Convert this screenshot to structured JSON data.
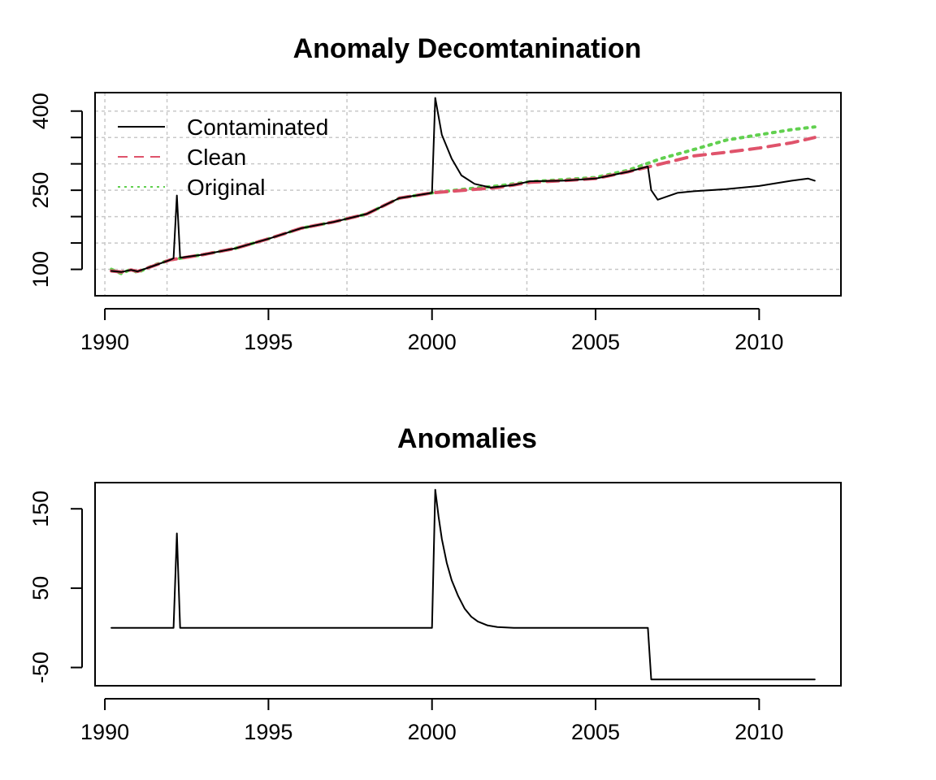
{
  "chart_data": [
    {
      "type": "line",
      "title": "Anomaly Decomtanination",
      "xlabel": "",
      "ylabel": "",
      "xlim": [
        1989.7,
        2012.5
      ],
      "ylim": [
        50,
        435
      ],
      "x_ticks": [
        1990,
        1995,
        2000,
        2005,
        2010
      ],
      "x_tick_labels": [
        "1990",
        "1995",
        "2000",
        "2005",
        "2010"
      ],
      "y_ticks": [
        100,
        250,
        400
      ],
      "y_tick_labels": [
        "100",
        "250",
        "400"
      ],
      "grid": true,
      "grid_x": [
        1990.0,
        1991.9,
        1997.4,
        2002.9,
        2008.3
      ],
      "grid_y": [
        100,
        150,
        200,
        250,
        300,
        350,
        400
      ],
      "legend_position": "top-left",
      "colors": {
        "contaminated": "#000000",
        "clean": "#DF536B",
        "original": "#61D04F"
      },
      "series": [
        {
          "name": "Contaminated",
          "style": "solid",
          "points": [
            [
              1990.2,
              97
            ],
            [
              1990.5,
              95
            ],
            [
              1990.8,
              99
            ],
            [
              1991.0,
              96
            ],
            [
              1991.5,
              107
            ],
            [
              1992.0,
              118
            ],
            [
              1992.1,
              121
            ],
            [
              1992.2,
              240
            ],
            [
              1992.3,
              122
            ],
            [
              1993.0,
              128
            ],
            [
              1994.0,
              140
            ],
            [
              1995.0,
              158
            ],
            [
              1996.0,
              178
            ],
            [
              1997.0,
              190
            ],
            [
              1998.0,
              205
            ],
            [
              1999.0,
              235
            ],
            [
              2000.0,
              245
            ],
            [
              2000.1,
              425
            ],
            [
              2000.3,
              355
            ],
            [
              2000.6,
              310
            ],
            [
              2000.9,
              278
            ],
            [
              2001.3,
              262
            ],
            [
              2001.8,
              255
            ],
            [
              2002.5,
              260
            ],
            [
              2003.0,
              267
            ],
            [
              2004.0,
              268
            ],
            [
              2005.0,
              272
            ],
            [
              2006.0,
              285
            ],
            [
              2006.6,
              295
            ],
            [
              2006.7,
              250
            ],
            [
              2006.9,
              232
            ],
            [
              2007.5,
              245
            ],
            [
              2008.0,
              248
            ],
            [
              2009.0,
              252
            ],
            [
              2010.0,
              258
            ],
            [
              2011.0,
              268
            ],
            [
              2011.5,
              272
            ],
            [
              2011.7,
              268
            ]
          ]
        },
        {
          "name": "Clean",
          "style": "dashed",
          "points": [
            [
              1990.2,
              97
            ],
            [
              1990.5,
              95
            ],
            [
              1990.8,
              99
            ],
            [
              1991.0,
              96
            ],
            [
              1991.5,
              107
            ],
            [
              1992.0,
              118
            ],
            [
              1993.0,
              128
            ],
            [
              1994.0,
              140
            ],
            [
              1995.0,
              158
            ],
            [
              1996.0,
              178
            ],
            [
              1997.0,
              190
            ],
            [
              1998.0,
              205
            ],
            [
              1999.0,
              235
            ],
            [
              2000.0,
              245
            ],
            [
              2001.0,
              250
            ],
            [
              2002.0,
              255
            ],
            [
              2003.0,
              265
            ],
            [
              2004.0,
              268
            ],
            [
              2005.0,
              272
            ],
            [
              2006.0,
              285
            ],
            [
              2007.0,
              300
            ],
            [
              2008.0,
              315
            ],
            [
              2009.0,
              322
            ],
            [
              2010.0,
              330
            ],
            [
              2011.0,
              340
            ],
            [
              2011.7,
              350
            ]
          ]
        },
        {
          "name": "Original",
          "style": "dotted",
          "points": [
            [
              1990.2,
              100
            ],
            [
              1990.5,
              92
            ],
            [
              1990.8,
              100
            ],
            [
              1991.0,
              94
            ],
            [
              1991.5,
              108
            ],
            [
              1992.0,
              118
            ],
            [
              1993.0,
              128
            ],
            [
              1994.0,
              140
            ],
            [
              1995.0,
              158
            ],
            [
              1996.0,
              178
            ],
            [
              1997.0,
              190
            ],
            [
              1998.0,
              205
            ],
            [
              1999.0,
              235
            ],
            [
              2000.0,
              245
            ],
            [
              2001.0,
              252
            ],
            [
              2002.0,
              258
            ],
            [
              2003.0,
              266
            ],
            [
              2004.0,
              270
            ],
            [
              2005.0,
              274
            ],
            [
              2006.0,
              288
            ],
            [
              2007.0,
              310
            ],
            [
              2008.0,
              327
            ],
            [
              2009.0,
              345
            ],
            [
              2010.0,
              355
            ],
            [
              2011.0,
              365
            ],
            [
              2011.7,
              370
            ]
          ]
        }
      ]
    },
    {
      "type": "line",
      "title": "Anomalies",
      "xlabel": "",
      "ylabel": "",
      "xlim": [
        1989.7,
        2012.5
      ],
      "ylim": [
        -73,
        183
      ],
      "x_ticks": [
        1990,
        1995,
        2000,
        2005,
        2010
      ],
      "x_tick_labels": [
        "1990",
        "1995",
        "2000",
        "2005",
        "2010"
      ],
      "y_ticks": [
        -50,
        50,
        150
      ],
      "y_tick_labels": [
        "-50",
        "50",
        "150"
      ],
      "grid": false,
      "series": [
        {
          "name": "",
          "style": "solid",
          "color": "#000000",
          "points": [
            [
              1990.2,
              0
            ],
            [
              1992.1,
              0
            ],
            [
              1992.2,
              119
            ],
            [
              1992.3,
              0
            ],
            [
              2000.0,
              0
            ],
            [
              2000.1,
              174
            ],
            [
              2000.2,
              140
            ],
            [
              2000.3,
              112
            ],
            [
              2000.45,
              82
            ],
            [
              2000.6,
              60
            ],
            [
              2000.8,
              40
            ],
            [
              2001.0,
              24
            ],
            [
              2001.2,
              14
            ],
            [
              2001.4,
              8
            ],
            [
              2001.7,
              3
            ],
            [
              2002.0,
              1
            ],
            [
              2002.5,
              0
            ],
            [
              2006.6,
              0
            ],
            [
              2006.7,
              -65
            ],
            [
              2011.7,
              -65
            ]
          ]
        }
      ]
    }
  ]
}
